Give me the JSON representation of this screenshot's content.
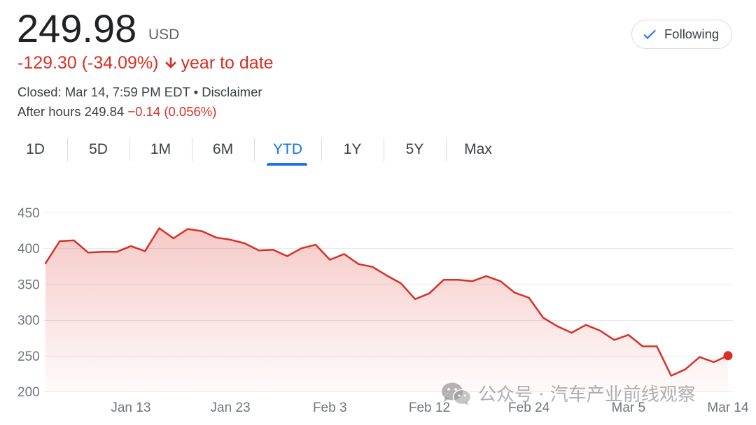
{
  "quote": {
    "price": "249.98",
    "currency": "USD",
    "change": "-129.30 (-34.09%)",
    "change_icon": "arrow-down-icon",
    "period": "year to date",
    "closed_label": "Closed: Mar 14, 7:59 PM EDT",
    "separator": "•",
    "disclaimer": "Disclaimer",
    "after_hours_label": "After hours",
    "after_hours_price": "249.84",
    "after_hours_change": "−0.14 (0.056%)"
  },
  "follow_button": {
    "icon": "check-icon",
    "label": "Following"
  },
  "range_tabs": [
    {
      "label": "1D"
    },
    {
      "label": "5D"
    },
    {
      "label": "1M"
    },
    {
      "label": "6M"
    },
    {
      "label": "YTD",
      "selected": true
    },
    {
      "label": "1Y"
    },
    {
      "label": "5Y"
    },
    {
      "label": "Max"
    }
  ],
  "colors": {
    "negative": "#d93025",
    "accent": "#1a73e8",
    "grid": "#e8eaed"
  },
  "watermark": {
    "icon": "wechat-icon",
    "text": "公众号 · 汽车产业前线观察"
  },
  "chart_data": {
    "type": "area",
    "x": [
      "Jan 2",
      "Jan 3",
      "Jan 6",
      "Jan 7",
      "Jan 8",
      "Jan 10",
      "Jan 13",
      "Jan 14",
      "Jan 15",
      "Jan 16",
      "Jan 17",
      "Jan 21",
      "Jan 22",
      "Jan 23",
      "Jan 24",
      "Jan 27",
      "Jan 28",
      "Jan 29",
      "Jan 30",
      "Jan 31",
      "Feb 3",
      "Feb 4",
      "Feb 5",
      "Feb 6",
      "Feb 7",
      "Feb 10",
      "Feb 11",
      "Feb 12",
      "Feb 13",
      "Feb 14",
      "Feb 18",
      "Feb 19",
      "Feb 20",
      "Feb 21",
      "Feb 24",
      "Feb 25",
      "Feb 26",
      "Feb 27",
      "Feb 28",
      "Mar 3",
      "Mar 4",
      "Mar 5",
      "Mar 6",
      "Mar 7",
      "Mar 10",
      "Mar 11",
      "Mar 12",
      "Mar 13",
      "Mar 14"
    ],
    "series": [
      {
        "values": [
          379,
          410,
          411,
          394,
          395,
          395,
          403,
          396,
          428,
          414,
          427,
          424,
          415,
          412,
          407,
          397,
          398,
          389,
          400,
          405,
          384,
          392,
          378,
          374,
          362,
          351,
          329,
          337,
          356,
          356,
          354,
          361,
          354,
          338,
          331,
          303,
          291,
          282,
          293,
          285,
          272,
          279,
          263,
          263,
          222,
          231,
          248,
          241,
          250
        ]
      }
    ],
    "ylim": [
      200,
      450
    ],
    "yticks": [
      450,
      400,
      350,
      300,
      250,
      200
    ],
    "xticks": [
      "Jan 13",
      "Jan 23",
      "Feb 3",
      "Feb 12",
      "Feb 24",
      "Mar 5",
      "Mar 14"
    ],
    "grid": "horizontal",
    "line_color": "#d93025",
    "fill": "gradient"
  }
}
